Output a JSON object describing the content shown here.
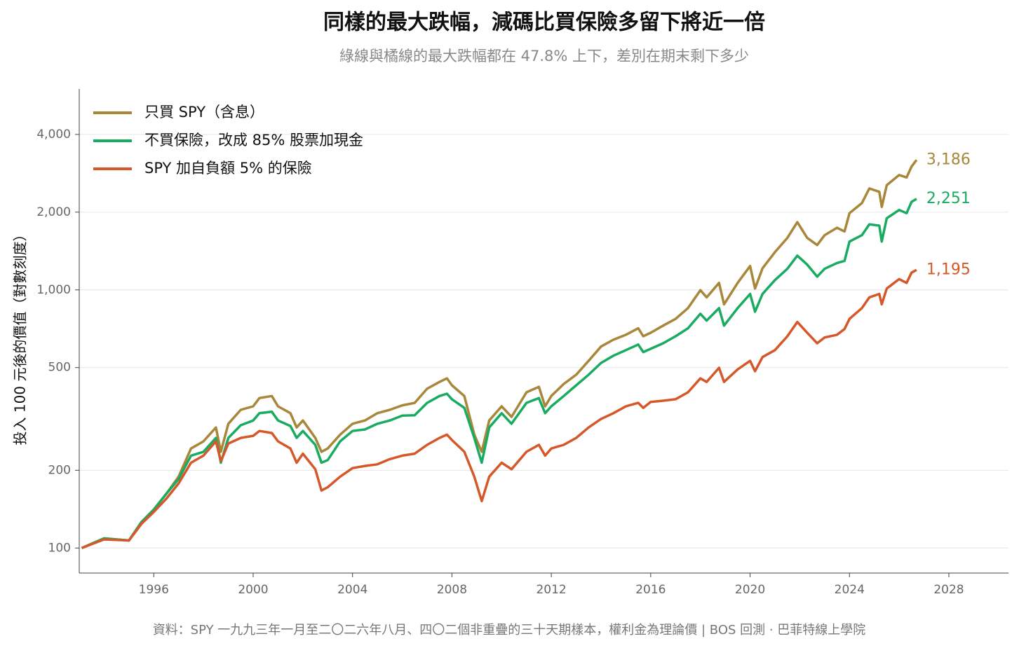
{
  "chart_data": {
    "type": "line",
    "title": "同樣的最大跌幅，減碼比買保險多留下將近一倍",
    "subtitle": "綠線與橘線的最大跌幅都在 47.8% 上下，差別在期末剩下多少",
    "y_label": "投入 100 元後的價值（對數刻度）",
    "note": "資料：SPY 一九九三年一月至二〇二六年八月、四〇二個非重疊的三十天期樣本，權利金為理論價 | BOS 回測 ·  巴菲特線上學院",
    "log_y": true,
    "grid": true,
    "legend": "top-left",
    "xlim": [
      1993,
      2030.4
    ],
    "ylim": [
      80,
      6000
    ],
    "xticks": [
      1996,
      2000,
      2004,
      2008,
      2012,
      2016,
      2020,
      2024,
      2028
    ],
    "yticks": [
      100,
      200,
      500,
      {
        "value": 1000,
        "label": "1,000"
      },
      {
        "value": 2000,
        "label": "2,000"
      },
      {
        "value": 4000,
        "label": "4,000"
      }
    ],
    "x": [
      1993.1,
      1994,
      1995,
      1995.5,
      1996,
      1996.5,
      1997,
      1997.5,
      1998,
      1998.5,
      1998.7,
      1999,
      1999.5,
      2000,
      2000.25,
      2000.75,
      2001,
      2001.5,
      2001.75,
      2002,
      2002.5,
      2002.75,
      2003,
      2003.5,
      2004,
      2004.5,
      2005,
      2005.5,
      2006,
      2006.5,
      2007,
      2007.5,
      2007.8,
      2008,
      2008.5,
      2008.9,
      2009.2,
      2009.5,
      2010,
      2010.4,
      2011,
      2011.5,
      2011.75,
      2012,
      2012.5,
      2013,
      2013.5,
      2014,
      2014.5,
      2015,
      2015.5,
      2015.7,
      2016,
      2016.5,
      2017,
      2017.5,
      2018,
      2018.25,
      2018.75,
      2018.95,
      2019.5,
      2020,
      2020.2,
      2020.5,
      2021,
      2021.5,
      2021.9,
      2022.3,
      2022.7,
      2023,
      2023.5,
      2023.8,
      2024,
      2024.5,
      2024.8,
      2025.2,
      2025.3,
      2025.5,
      2026,
      2026.3,
      2026.5,
      2026.7
    ],
    "series": [
      {
        "name": "只買 SPY（含息）",
        "color": "#a8873a",
        "end_label": "3,186",
        "values": [
          100,
          109,
          107,
          126,
          141,
          162,
          189,
          243,
          259,
          293,
          236,
          303,
          343,
          354,
          381,
          388,
          354,
          333,
          293,
          312,
          267,
          236,
          243,
          275,
          303,
          312,
          333,
          343,
          357,
          365,
          414,
          440,
          454,
          427,
          388,
          275,
          236,
          312,
          354,
          322,
          401,
          421,
          354,
          388,
          432,
          469,
          531,
          603,
          641,
          670,
          710,
          661,
          682,
          727,
          772,
          850,
          997,
          935,
          1064,
          879,
          1064,
          1237,
          1012,
          1213,
          1400,
          1589,
          1829,
          1589,
          1491,
          1629,
          1740,
          1683,
          1982,
          2168,
          2471,
          2398,
          2095,
          2542,
          2786,
          2726,
          3002,
          3186
        ]
      },
      {
        "name": "不買保險，改成 85% 股票加現金",
        "color": "#1aab62",
        "end_label": "2,251",
        "values": [
          100,
          109,
          107,
          126,
          141,
          162,
          185,
          228,
          236,
          267,
          214,
          267,
          299,
          312,
          333,
          337,
          312,
          297,
          267,
          284,
          251,
          214,
          219,
          259,
          284,
          288,
          303,
          312,
          326,
          327,
          365,
          388,
          396,
          377,
          349,
          267,
          214,
          293,
          333,
          303,
          365,
          381,
          333,
          354,
          388,
          427,
          469,
          521,
          556,
          584,
          614,
          574,
          591,
          621,
          661,
          710,
          808,
          760,
          850,
          727,
          850,
          964,
          823,
          964,
          1091,
          1207,
          1357,
          1253,
          1125,
          1207,
          1271,
          1295,
          1539,
          1629,
          1794,
          1773,
          1539,
          1893,
          2040,
          1982,
          2193,
          2251
        ]
      },
      {
        "name": "SPY 加自負額 5% 的保險",
        "color": "#d4582a",
        "end_label": "1,195",
        "values": [
          100,
          108,
          107,
          124,
          138,
          155,
          178,
          214,
          228,
          259,
          217,
          254,
          267,
          272,
          284,
          279,
          259,
          243,
          214,
          232,
          202,
          167,
          172,
          189,
          204,
          208,
          211,
          221,
          228,
          232,
          251,
          267,
          275,
          262,
          236,
          189,
          152,
          189,
          214,
          202,
          236,
          251,
          228,
          243,
          251,
          267,
          293,
          316,
          333,
          354,
          365,
          349,
          368,
          372,
          377,
          401,
          454,
          440,
          499,
          440,
          492,
          531,
          484,
          549,
          584,
          661,
          751,
          682,
          621,
          654,
          670,
          705,
          772,
          850,
          935,
          964,
          879,
          1012,
          1101,
          1064,
          1166,
          1195
        ]
      }
    ]
  }
}
